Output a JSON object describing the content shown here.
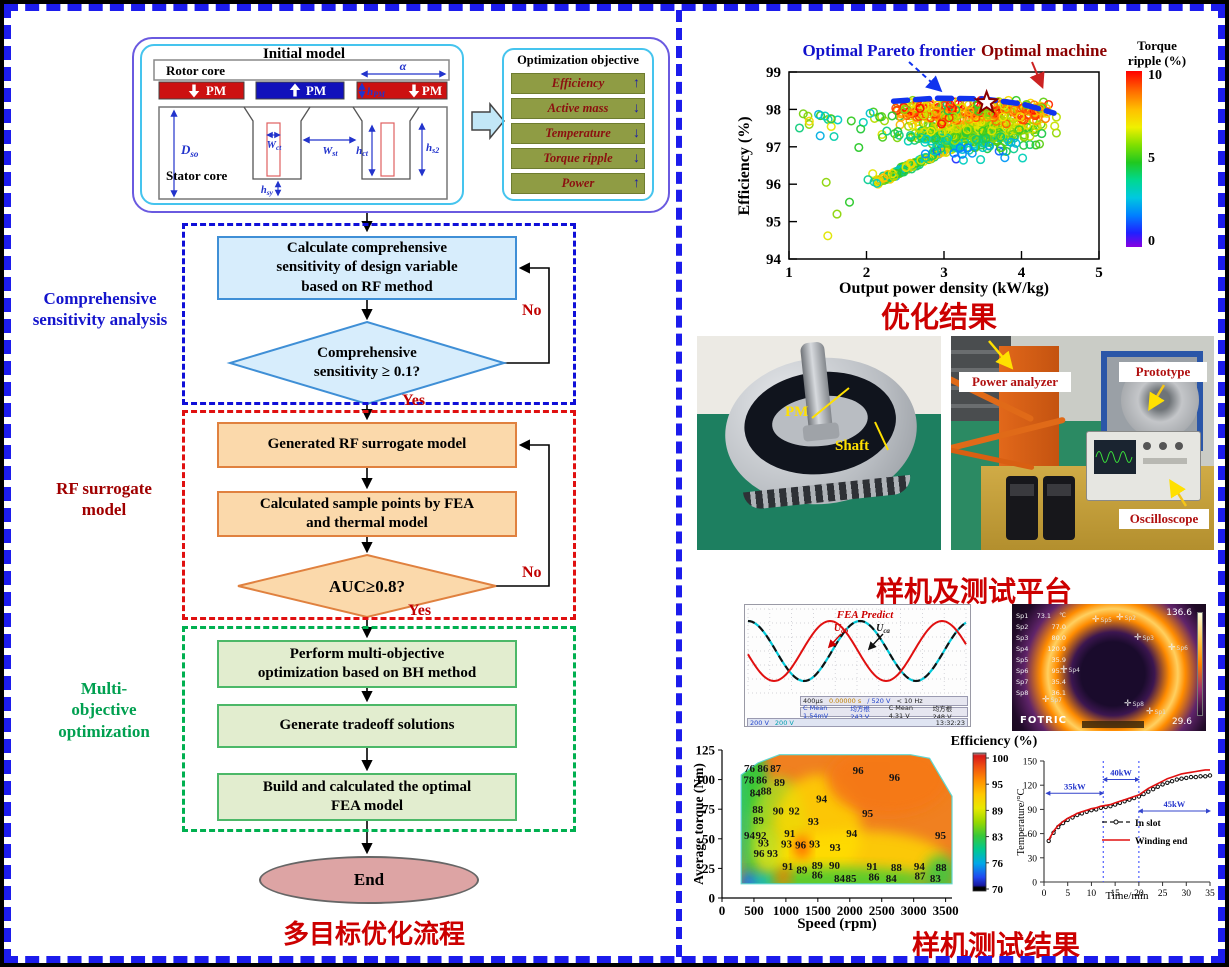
{
  "captions": {
    "flowchart": "多目标优化流程",
    "optimization": "优化结果",
    "platform": "样机及测试平台",
    "test_results": "样机测试结果"
  },
  "initial_model": {
    "title": "Initial model",
    "rotor_core": "Rotor core",
    "stator_core": "Stator core",
    "pm1": "PM",
    "pm2": "PM",
    "pm3": "PM",
    "dim_alpha": "α",
    "dim_hpm": {
      "main": "h",
      "sub": "PM"
    },
    "dim_dso": {
      "main": "D",
      "sub": "so"
    },
    "dim_wct": {
      "main": "W",
      "sub": "ct"
    },
    "dim_wst": {
      "main": "W",
      "sub": "st"
    },
    "dim_hct": {
      "main": "h",
      "sub": "ct"
    },
    "dim_hs2": {
      "main": "h",
      "sub": "s2"
    },
    "dim_hsy": {
      "main": "h",
      "sub": "sy"
    }
  },
  "objectives": {
    "title": "Optimization objective",
    "items": [
      {
        "label": "Efficiency",
        "arrow": "↑"
      },
      {
        "label": "Active mass",
        "arrow": "↓"
      },
      {
        "label": "Temperature",
        "arrow": "↓"
      },
      {
        "label": "Torque ripple",
        "arrow": "↓"
      },
      {
        "label": "Power",
        "arrow": "↑"
      }
    ]
  },
  "flow": {
    "side_labels": [
      {
        "text": "Comprehensive\nsensitivity analysis",
        "color": "#1414cc"
      },
      {
        "text": "RF surrogate\nmodel",
        "color": "#a00000"
      },
      {
        "text": "Multi-\nobjective\noptimization",
        "color": "#00a050"
      }
    ],
    "step1": "Calculate comprehensive\nsensitivity of design variable\nbased on RF method",
    "decision1": "Comprehensive\nsensitivity ≥ 0.1?",
    "step2": "Generated RF surrogate model",
    "step3": "Calculated sample points by FEA\nand thermal model",
    "decision2": "AUC≥0.8?",
    "step4": "Perform multi-objective\noptimization based on BH method",
    "step5": "Generate tradeoff solutions",
    "step6": "Build and calculated the optimal\nFEA model",
    "end_label": "End",
    "yes": "Yes",
    "no": "No"
  },
  "photos": {
    "rotor": {
      "pm": "PM",
      "shaft": "Shaft"
    },
    "platform": {
      "power_analyzer": "Power analyzer",
      "prototype": "Prototype",
      "oscilloscope": "Oscilloscope"
    }
  },
  "thermal": {
    "brand": "FOTRIC",
    "max": "136.6",
    "min": "29.6",
    "unit": "℃",
    "readings": [
      [
        "Sp1",
        "73.1"
      ],
      [
        "Sp2",
        "77.0"
      ],
      [
        "Sp3",
        "80.0"
      ],
      [
        "Sp4",
        "120.9"
      ],
      [
        "Sp5",
        "35.9"
      ],
      [
        "Sp6",
        "95.1"
      ],
      [
        "Sp7",
        "35.4"
      ],
      [
        "Sp8",
        "36.1"
      ]
    ],
    "marker_names": [
      "Sp5",
      "Sp2",
      "Sp3",
      "Sp6",
      "Sp4",
      "Sp7",
      "Sp8",
      "Sp1"
    ]
  },
  "chart_data": [
    {
      "id": "pareto-scatter",
      "type": "scatter",
      "xlabel": "Output power density (kW/kg)",
      "ylabel": "Efficiency (%)",
      "xlim": [
        1,
        5
      ],
      "ylim": [
        94,
        99
      ],
      "xticks": [
        1,
        2,
        3,
        4,
        5
      ],
      "yticks": [
        94,
        95,
        96,
        97,
        98,
        99
      ],
      "colorbar": {
        "title_line1": "Torque",
        "title_line2": "ripple (%)",
        "ticks": [
          10,
          5,
          0
        ],
        "vmin": 0,
        "vmax": 10
      },
      "annotations": {
        "pareto": "Optimal Pareto frontier",
        "machine": "Optimal machine"
      },
      "pareto_frontier": [
        [
          2.35,
          98.22
        ],
        [
          2.9,
          98.3
        ],
        [
          3.5,
          98.28
        ],
        [
          4.0,
          98.15
        ],
        [
          4.42,
          97.9
        ]
      ],
      "optimal_machine": [
        3.55,
        98.18
      ],
      "clusters": [
        {
          "kind": "band",
          "n": 150,
          "x0": 2.12,
          "y0": 96.02,
          "x1": 3.2,
          "y1": 97.12,
          "jx": 0.05,
          "jy": 0.06,
          "r0": 3,
          "r1": 8
        },
        {
          "kind": "gauss",
          "n": 430,
          "cx": 3.35,
          "cy": 97.35,
          "sx": 0.42,
          "sy": 0.28,
          "ripple": "by_y"
        },
        {
          "kind": "strip",
          "n": 240,
          "x0": 2.35,
          "x1": 4.35,
          "cy": 97.97,
          "sy": 0.13,
          "r0": 4,
          "r1": 10
        },
        {
          "kind": "uniform",
          "n": 26,
          "x0": 1.05,
          "x1": 2.35,
          "y0": 97.25,
          "y1": 97.95,
          "r0": 3,
          "r1": 8
        }
      ],
      "outliers": [
        [
          1.5,
          94.62,
          7
        ],
        [
          1.62,
          95.2,
          6
        ],
        [
          1.78,
          95.52,
          5
        ],
        [
          1.48,
          96.05,
          6
        ],
        [
          2.08,
          96.28,
          7
        ],
        [
          1.9,
          96.98,
          5
        ],
        [
          2.02,
          96.12,
          4
        ]
      ]
    },
    {
      "id": "efficiency-map",
      "type": "heatmap",
      "xlabel": "Speed (rpm)",
      "ylabel": "Average torque (Nm)",
      "xlim": [
        0,
        3600
      ],
      "ylim": [
        0,
        125
      ],
      "xticks": [
        0,
        500,
        1000,
        1500,
        2000,
        2500,
        3000,
        3500
      ],
      "yticks": [
        0,
        25,
        50,
        75,
        100,
        125
      ],
      "colorbar": {
        "title": "Efficiency (%)",
        "ticks": [
          100,
          95,
          89,
          83,
          76,
          70
        ],
        "vmin": 70,
        "vmax": 100
      },
      "point_labels": [
        [
          430,
          110,
          76
        ],
        [
          640,
          110,
          86
        ],
        [
          840,
          110,
          87
        ],
        [
          2130,
          108,
          96
        ],
        [
          2700,
          102,
          96
        ],
        [
          420,
          100,
          78
        ],
        [
          620,
          100,
          86
        ],
        [
          900,
          98,
          89
        ],
        [
          520,
          89,
          84
        ],
        [
          690,
          91,
          88
        ],
        [
          1560,
          84,
          94
        ],
        [
          560,
          75,
          88
        ],
        [
          880,
          74,
          90
        ],
        [
          1130,
          74,
          92
        ],
        [
          2280,
          72,
          95
        ],
        [
          570,
          66,
          89
        ],
        [
          1430,
          65,
          93
        ],
        [
          430,
          53,
          94
        ],
        [
          610,
          53,
          92
        ],
        [
          1060,
          55,
          91
        ],
        [
          2030,
          55,
          94
        ],
        [
          3420,
          53,
          95
        ],
        [
          650,
          47,
          93
        ],
        [
          1010,
          46,
          93
        ],
        [
          1230,
          45,
          96
        ],
        [
          1450,
          46,
          93
        ],
        [
          1770,
          43,
          93
        ],
        [
          580,
          38,
          96
        ],
        [
          790,
          38,
          93
        ],
        [
          1030,
          27,
          91
        ],
        [
          1250,
          24,
          89
        ],
        [
          1490,
          28,
          89
        ],
        [
          1760,
          28,
          90
        ],
        [
          2350,
          27,
          91
        ],
        [
          2730,
          26,
          88
        ],
        [
          3090,
          27,
          94
        ],
        [
          3430,
          26,
          88
        ],
        [
          1490,
          20,
          86
        ],
        [
          1840,
          17,
          84
        ],
        [
          2020,
          17,
          85
        ],
        [
          2380,
          18,
          86
        ],
        [
          2650,
          17,
          84
        ],
        [
          3100,
          19,
          87
        ],
        [
          3340,
          17,
          83
        ]
      ]
    },
    {
      "id": "temperature-rise",
      "type": "line",
      "xlabel": "Time/min",
      "ylabel": "Temperature/°C",
      "xlim": [
        0,
        35
      ],
      "ylim": [
        0,
        150
      ],
      "xticks": [
        0,
        5,
        10,
        15,
        20,
        25,
        30,
        35
      ],
      "yticks": [
        0,
        30,
        60,
        90,
        120,
        150
      ],
      "series": [
        {
          "name": "In slot",
          "color": "#111111",
          "style": "dashed-circle",
          "x": [
            1,
            2,
            3,
            4,
            5,
            6,
            7,
            8,
            9,
            10,
            11,
            12,
            13,
            14,
            15,
            16,
            17,
            18,
            19,
            20,
            21,
            22,
            23,
            24,
            25,
            26,
            27,
            28,
            29,
            30,
            31,
            32,
            33,
            34,
            35
          ],
          "y": [
            51,
            61,
            68,
            73,
            77,
            80,
            83,
            85,
            87,
            89,
            90,
            92,
            93,
            94,
            96,
            98,
            100,
            102,
            104,
            106,
            109,
            112,
            115,
            118,
            121,
            123,
            125,
            127,
            128,
            129,
            130,
            130,
            131,
            131,
            132
          ]
        },
        {
          "name": "Winding end",
          "color": "#e01010",
          "style": "solid",
          "x": [
            1,
            2,
            3,
            4,
            5,
            6,
            7,
            8,
            9,
            10,
            11,
            12,
            13,
            14,
            15,
            16,
            17,
            18,
            19,
            20,
            21,
            22,
            23,
            24,
            25,
            26,
            27,
            28,
            29,
            30,
            31,
            32,
            33,
            34,
            35
          ],
          "y": [
            52,
            63,
            70,
            75,
            79,
            82,
            85,
            87,
            89,
            91,
            92,
            94,
            95,
            96,
            98,
            100,
            102,
            104,
            106,
            108,
            112,
            116,
            119,
            122,
            125,
            128,
            130,
            132,
            134,
            135,
            136,
            137,
            138,
            139,
            139
          ]
        }
      ],
      "stages": [
        {
          "label": "35kW",
          "from": 0.5,
          "to": 12.5,
          "y": 110
        },
        {
          "label": "40kW",
          "from": 12.5,
          "to": 20,
          "y": 127
        },
        {
          "label": "45kW",
          "from": 20,
          "to": 35,
          "y": 88
        }
      ],
      "dividers": [
        12.5,
        20
      ]
    },
    {
      "id": "voltage-waveform",
      "type": "line",
      "annotations": {
        "title": "FEA Predict",
        "trace1": {
          "main": "U",
          "sub": "ab"
        },
        "trace2": {
          "main": "U",
          "sub": "ca"
        }
      },
      "readout_row1": [
        "400μs",
        "0.00000 s",
        "/ 520 V",
        "< 10 Hz"
      ],
      "readout_row2": [
        "C Mean 1.54mV",
        "均方根 243 V",
        "C Mean 4.31 V",
        "均方根 248 V"
      ],
      "readout_row3": [
        "200 V",
        "200 V",
        "13:32:23"
      ]
    }
  ]
}
